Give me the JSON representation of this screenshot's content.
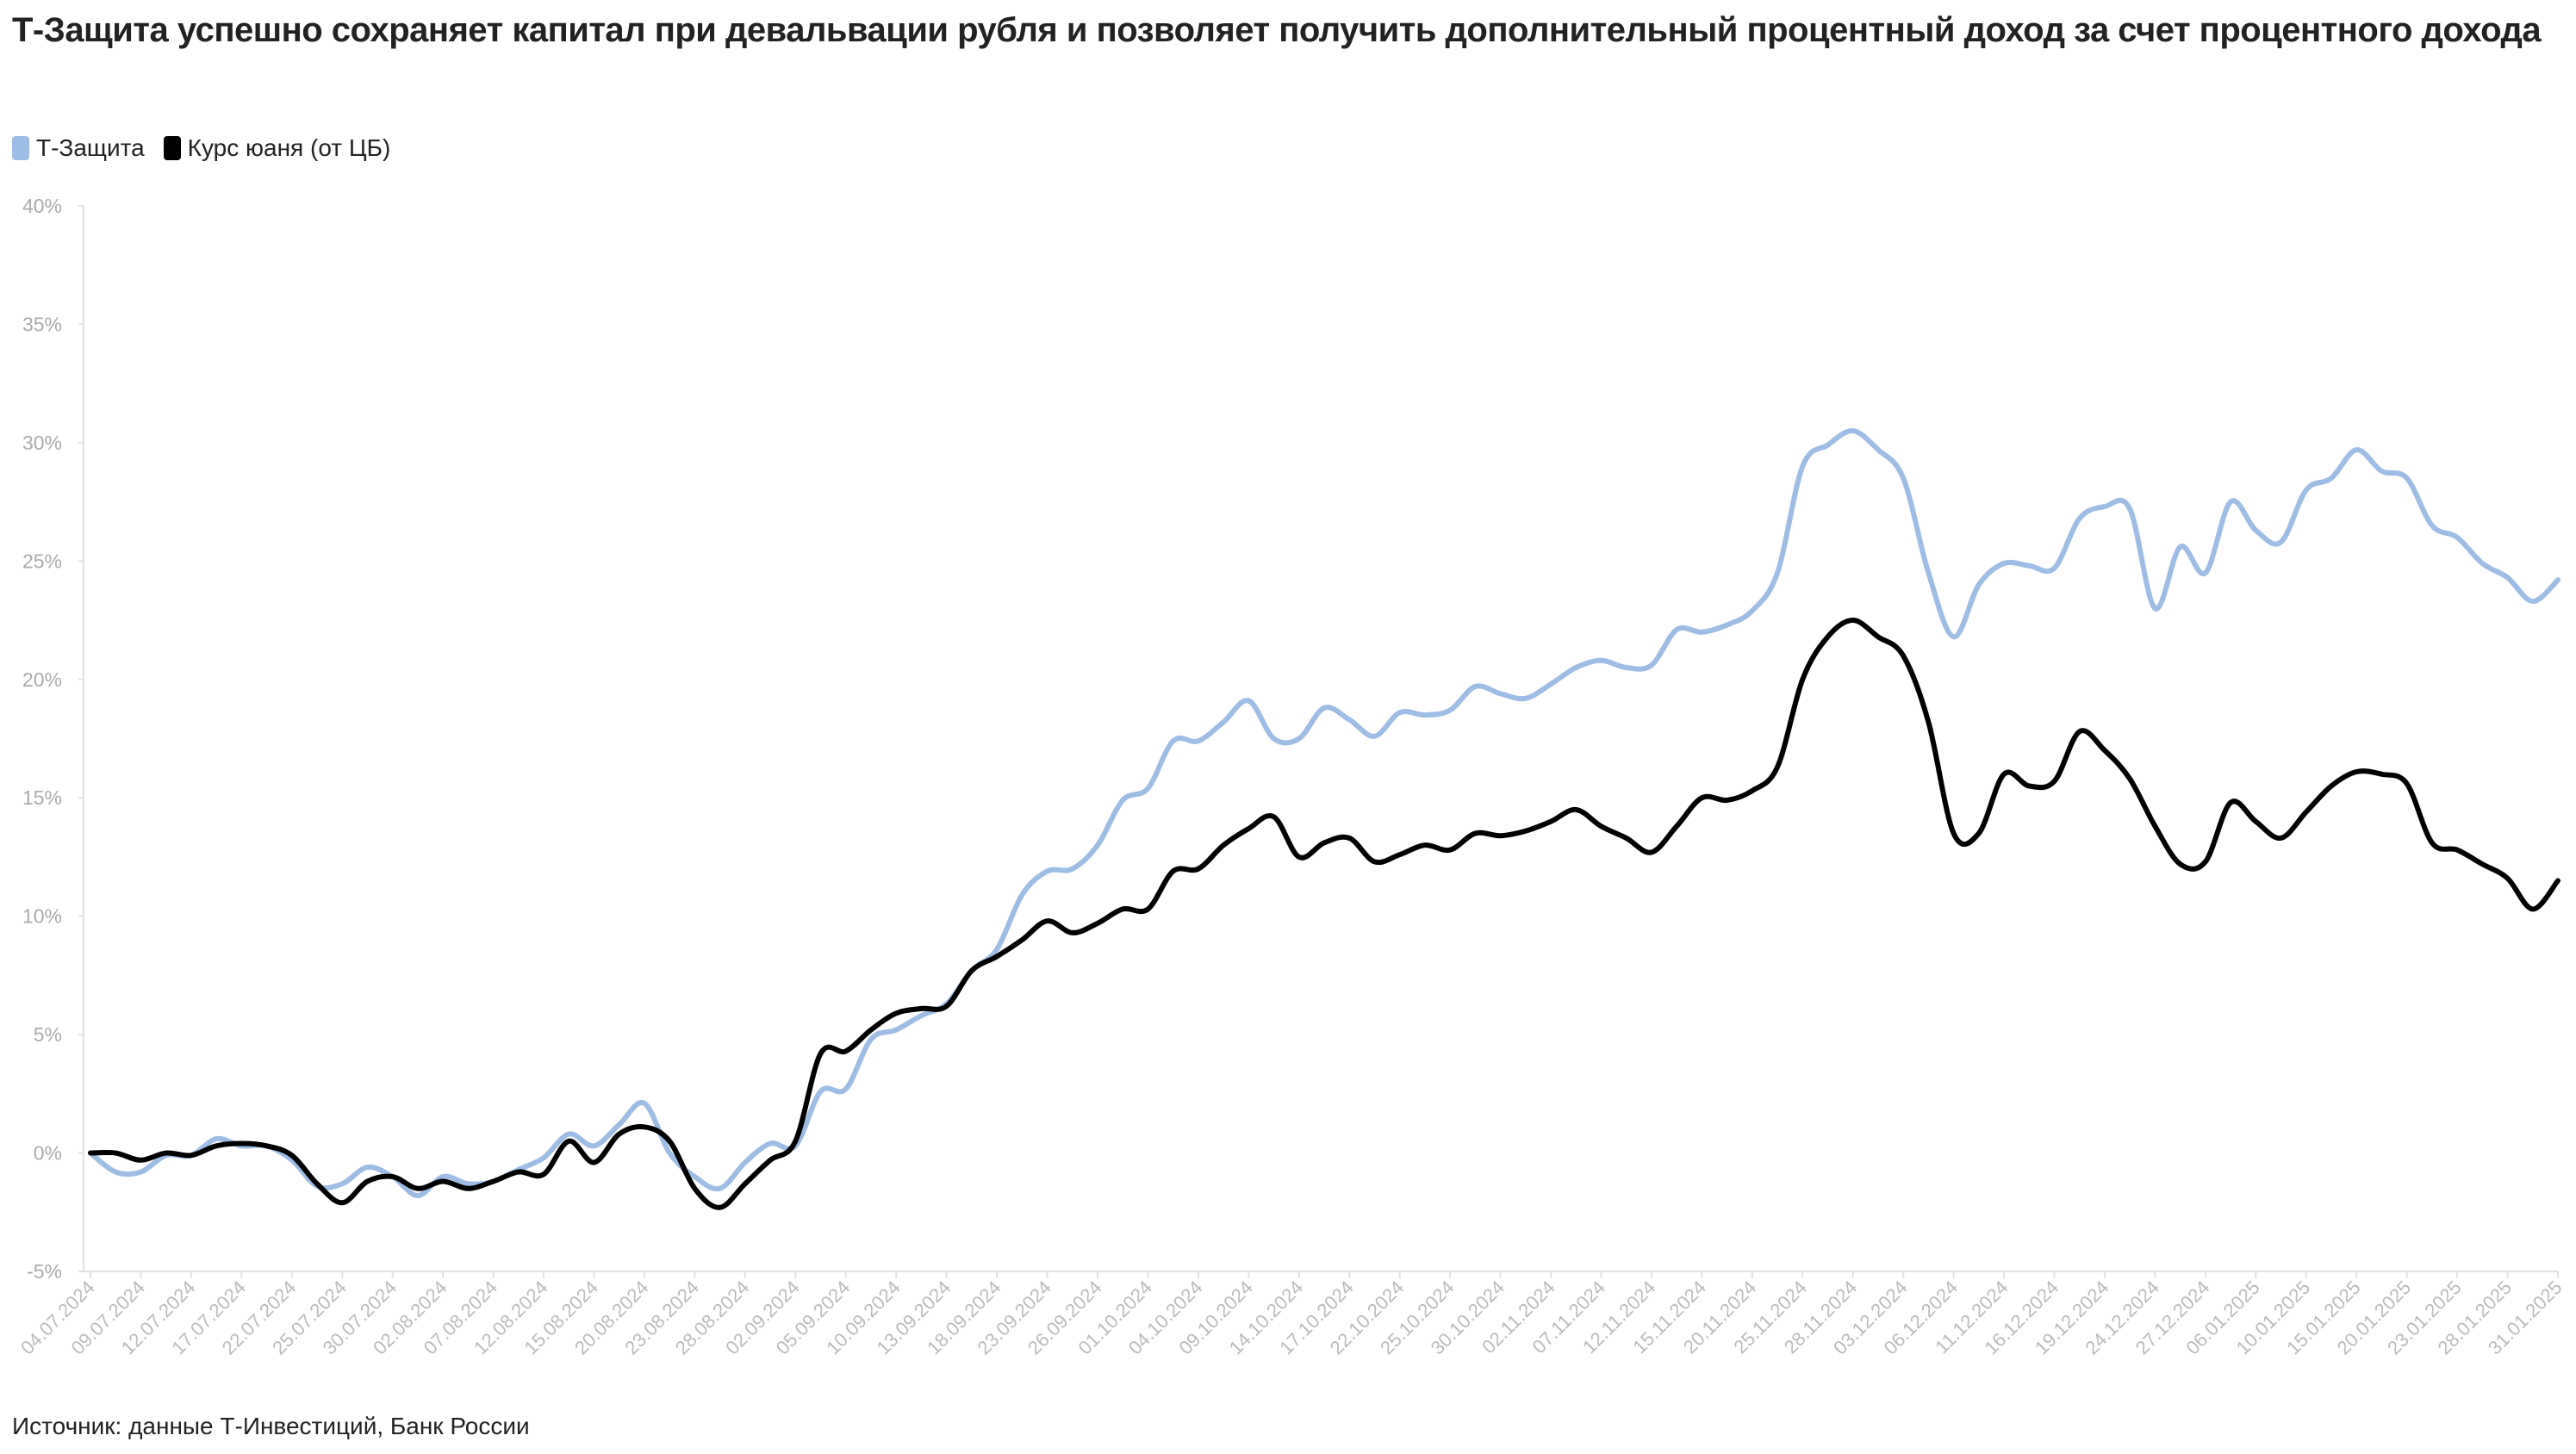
{
  "chart_data": {
    "type": "line",
    "title": "Т-Защита успешно сохраняет капитал при девальвации рубля и позволяет получить дополнительный процентный доход за счет процентного дохода",
    "source": "Источник: данные Т-Инвестиций, Банк России",
    "categories": [
      "04.07.2024",
      null,
      "09.07.2024",
      null,
      "12.07.2024",
      null,
      "17.07.2024",
      null,
      "22.07.2024",
      null,
      "25.07.2024",
      null,
      "30.07.2024",
      null,
      "02.08.2024",
      null,
      "07.08.2024",
      null,
      "12.08.2024",
      null,
      "15.08.2024",
      null,
      "20.08.2024",
      null,
      "23.08.2024",
      null,
      "28.08.2024",
      null,
      "02.09.2024",
      null,
      "05.09.2024",
      null,
      "10.09.2024",
      null,
      "13.09.2024",
      null,
      "18.09.2024",
      null,
      "23.09.2024",
      null,
      "26.09.2024",
      null,
      "01.10.2024",
      null,
      "04.10.2024",
      null,
      "09.10.2024",
      null,
      "14.10.2024",
      null,
      "17.10.2024",
      null,
      "22.10.2024",
      null,
      "25.10.2024",
      null,
      "30.10.2024",
      null,
      "02.11.2024",
      null,
      "07.11.2024",
      null,
      "12.11.2024",
      null,
      "15.11.2024",
      null,
      "20.11.2024",
      null,
      "25.11.2024",
      null,
      "28.11.2024",
      null,
      "03.12.2024",
      null,
      "06.12.2024",
      null,
      "11.12.2024",
      null,
      "16.12.2024",
      null,
      "19.12.2024",
      null,
      "24.12.2024",
      null,
      "27.12.2024",
      null,
      "06.01.2025",
      null,
      "10.01.2025",
      null,
      "15.01.2025",
      null,
      "20.01.2025",
      null,
      "23.01.2025",
      null,
      "28.01.2025",
      null,
      "31.01.2025"
    ],
    "series": [
      {
        "name": "Т-Защита",
        "color": "#9dbde6",
        "values": [
          0,
          -0.8,
          -0.8,
          -0.1,
          -0.1,
          0.6,
          0.3,
          0.3,
          -0.3,
          -1.4,
          -1.3,
          -0.6,
          -1.0,
          -1.8,
          -1.0,
          -1.3,
          -1.2,
          -0.7,
          -0.2,
          0.8,
          0.3,
          1.2,
          2.1,
          0,
          -1.0,
          -1.5,
          -0.4,
          0.4,
          0.3,
          2.6,
          2.7,
          4.8,
          5.2,
          5.8,
          6.3,
          7.7,
          8.6,
          10.9,
          11.9,
          12.0,
          13.0,
          14.9,
          15.4,
          17.4,
          17.4,
          18.2,
          19.1,
          17.5,
          17.5,
          18.8,
          18.3,
          17.6,
          18.6,
          18.5,
          18.7,
          19.7,
          19.4,
          19.2,
          19.8,
          20.5,
          20.8,
          20.5,
          20.6,
          22.1,
          22.0,
          22.3,
          22.9,
          24.5,
          29.0,
          29.9,
          30.5,
          29.7,
          28.5,
          24.5,
          21.8,
          24.0,
          24.9,
          24.8,
          24.7,
          26.8,
          27.3,
          27.2,
          23.0,
          25.6,
          24.5,
          27.5,
          26.3,
          25.8,
          28.0,
          28.5,
          29.7,
          28.8,
          28.5,
          26.5,
          26.0,
          24.9,
          24.3,
          23.3,
          24.2
        ]
      },
      {
        "name": "Курс юаня (от ЦБ)",
        "color": "#000000",
        "values": [
          0,
          0,
          -0.3,
          0,
          -0.1,
          0.3,
          0.4,
          0.3,
          -0.1,
          -1.3,
          -2.1,
          -1.2,
          -1.0,
          -1.5,
          -1.2,
          -1.5,
          -1.2,
          -0.8,
          -0.9,
          0.5,
          -0.4,
          0.8,
          1.1,
          0.5,
          -1.5,
          -2.3,
          -1.3,
          -0.3,
          0.5,
          4.2,
          4.3,
          5.2,
          5.9,
          6.1,
          6.2,
          7.7,
          8.3,
          9.0,
          9.8,
          9.3,
          9.7,
          10.3,
          10.3,
          11.9,
          12.0,
          13.0,
          13.7,
          14.2,
          12.5,
          13.1,
          13.3,
          12.3,
          12.6,
          13.0,
          12.8,
          13.5,
          13.4,
          13.6,
          14.0,
          14.5,
          13.8,
          13.3,
          12.7,
          13.8,
          15.0,
          14.9,
          15.3,
          16.3,
          20.0,
          21.8,
          22.5,
          21.8,
          21.0,
          18.2,
          13.5,
          13.5,
          16.0,
          15.5,
          15.7,
          17.8,
          17.0,
          15.8,
          13.8,
          12.2,
          12.3,
          14.8,
          14.0,
          13.3,
          14.4,
          15.5,
          16.1,
          16.0,
          15.6,
          13.1,
          12.8,
          12.2,
          11.6,
          10.3,
          11.5
        ]
      }
    ],
    "ylim": [
      -5,
      40
    ],
    "yticks": [
      {
        "value": -5,
        "label": "-5%"
      },
      {
        "value": 0,
        "label": "0%"
      },
      {
        "value": 5,
        "label": "5%"
      },
      {
        "value": 10,
        "label": "10%"
      },
      {
        "value": 15,
        "label": "15%"
      },
      {
        "value": 20,
        "label": "20%"
      },
      {
        "value": 25,
        "label": "25%"
      },
      {
        "value": 30,
        "label": "30%"
      },
      {
        "value": 35,
        "label": "35%"
      },
      {
        "value": 40,
        "label": "40%"
      }
    ],
    "grid": false,
    "legend": "top-left"
  }
}
